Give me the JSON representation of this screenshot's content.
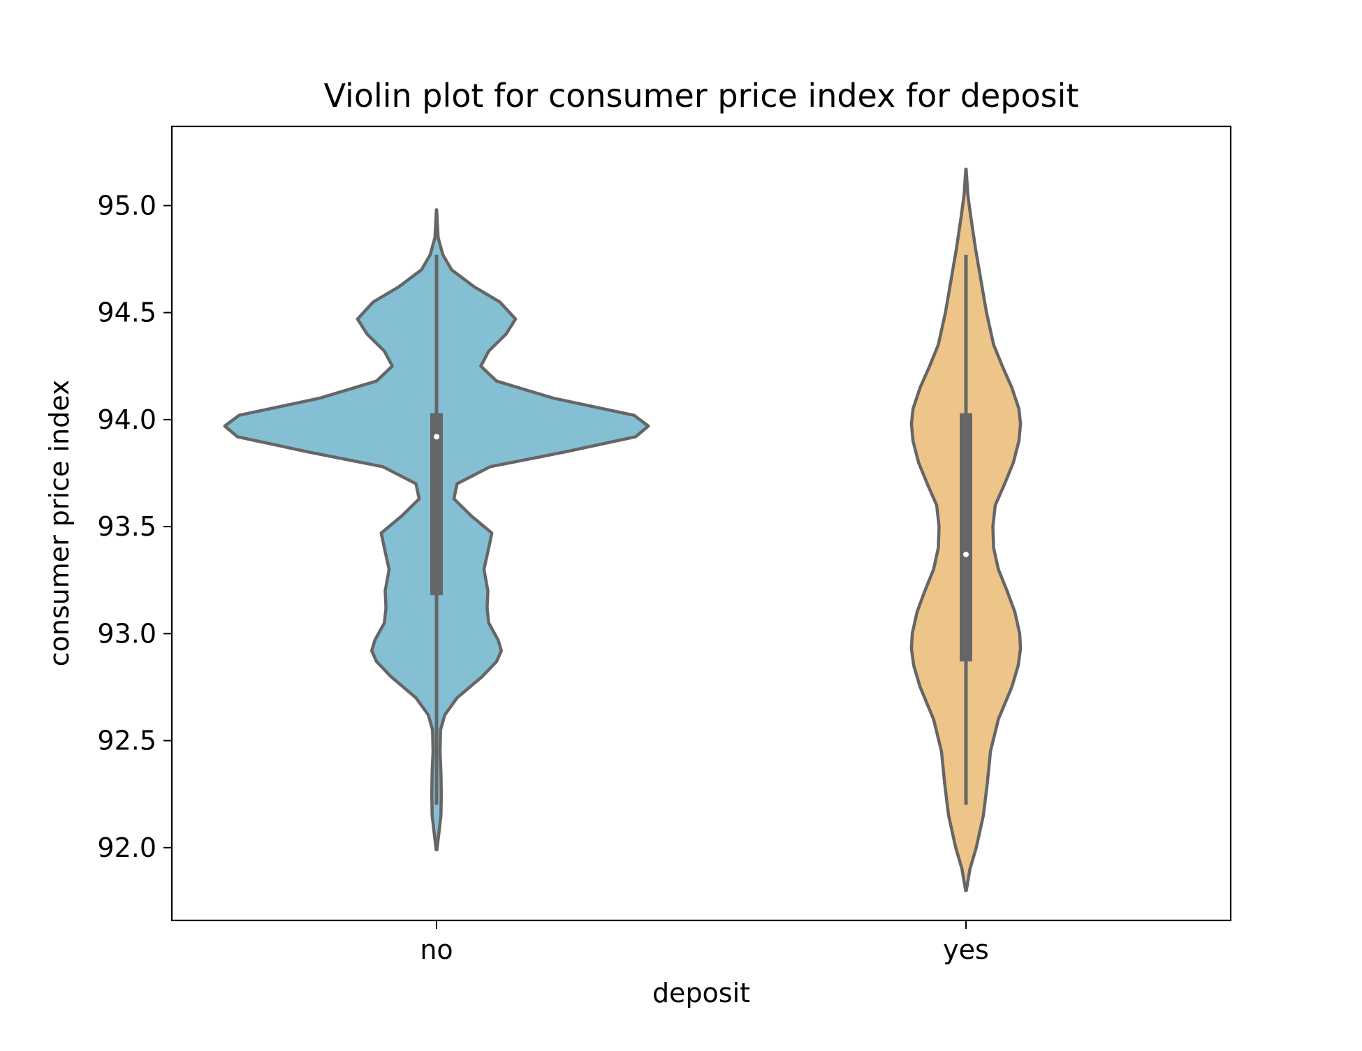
{
  "chart_data": {
    "type": "violin",
    "title": "Violin plot for consumer price index for deposit",
    "xlabel": "deposit",
    "ylabel": "consumer price index",
    "categories": [
      "no",
      "yes"
    ],
    "ylim": [
      91.66,
      95.37
    ],
    "yticks": [
      92.0,
      92.5,
      93.0,
      93.5,
      94.0,
      94.5,
      95.0
    ],
    "ytick_labels": [
      "92.0",
      "92.5",
      "93.0",
      "93.5",
      "94.0",
      "94.5",
      "95.0"
    ],
    "grid": false,
    "legend": "none",
    "violins": [
      {
        "category": "no",
        "color": "#84bfd4",
        "median": 93.92,
        "q1": 93.18,
        "q3": 94.03,
        "whisker_low": 92.2,
        "whisker_high": 94.77,
        "density": [
          [
            91.99,
            0.002
          ],
          [
            92.05,
            0.012
          ],
          [
            92.15,
            0.028
          ],
          [
            92.25,
            0.03
          ],
          [
            92.35,
            0.028
          ],
          [
            92.45,
            0.022
          ],
          [
            92.55,
            0.025
          ],
          [
            92.62,
            0.052
          ],
          [
            92.7,
            0.13
          ],
          [
            92.8,
            0.29
          ],
          [
            92.87,
            0.38
          ],
          [
            92.92,
            0.41
          ],
          [
            92.97,
            0.39
          ],
          [
            93.05,
            0.33
          ],
          [
            93.12,
            0.32
          ],
          [
            93.2,
            0.325
          ],
          [
            93.3,
            0.3
          ],
          [
            93.4,
            0.33
          ],
          [
            93.47,
            0.35
          ],
          [
            93.55,
            0.22
          ],
          [
            93.63,
            0.11
          ],
          [
            93.7,
            0.13
          ],
          [
            93.78,
            0.34
          ],
          [
            93.85,
            0.82
          ],
          [
            93.92,
            1.26
          ],
          [
            93.97,
            1.34
          ],
          [
            94.02,
            1.25
          ],
          [
            94.1,
            0.74
          ],
          [
            94.18,
            0.38
          ],
          [
            94.25,
            0.28
          ],
          [
            94.32,
            0.33
          ],
          [
            94.4,
            0.44
          ],
          [
            94.47,
            0.5
          ],
          [
            94.55,
            0.4
          ],
          [
            94.62,
            0.24
          ],
          [
            94.7,
            0.095
          ],
          [
            94.77,
            0.04
          ],
          [
            94.85,
            0.01
          ],
          [
            94.93,
            0.004
          ],
          [
            94.98,
            0.001
          ]
        ]
      },
      {
        "category": "yes",
        "color": "#eec589",
        "median": 93.37,
        "q1": 92.87,
        "q3": 94.03,
        "whisker_low": 92.2,
        "whisker_high": 94.77,
        "density": [
          [
            91.8,
            0.002
          ],
          [
            91.9,
            0.025
          ],
          [
            92.0,
            0.065
          ],
          [
            92.15,
            0.11
          ],
          [
            92.3,
            0.135
          ],
          [
            92.45,
            0.155
          ],
          [
            92.6,
            0.205
          ],
          [
            92.75,
            0.29
          ],
          [
            92.85,
            0.33
          ],
          [
            92.93,
            0.345
          ],
          [
            93.0,
            0.34
          ],
          [
            93.1,
            0.31
          ],
          [
            93.2,
            0.26
          ],
          [
            93.3,
            0.205
          ],
          [
            93.4,
            0.175
          ],
          [
            93.5,
            0.17
          ],
          [
            93.6,
            0.185
          ],
          [
            93.7,
            0.245
          ],
          [
            93.8,
            0.3
          ],
          [
            93.9,
            0.335
          ],
          [
            93.98,
            0.345
          ],
          [
            94.05,
            0.335
          ],
          [
            94.15,
            0.29
          ],
          [
            94.25,
            0.23
          ],
          [
            94.35,
            0.175
          ],
          [
            94.5,
            0.13
          ],
          [
            94.65,
            0.095
          ],
          [
            94.8,
            0.06
          ],
          [
            94.95,
            0.03
          ],
          [
            95.05,
            0.012
          ],
          [
            95.17,
            0.001
          ]
        ]
      }
    ]
  }
}
